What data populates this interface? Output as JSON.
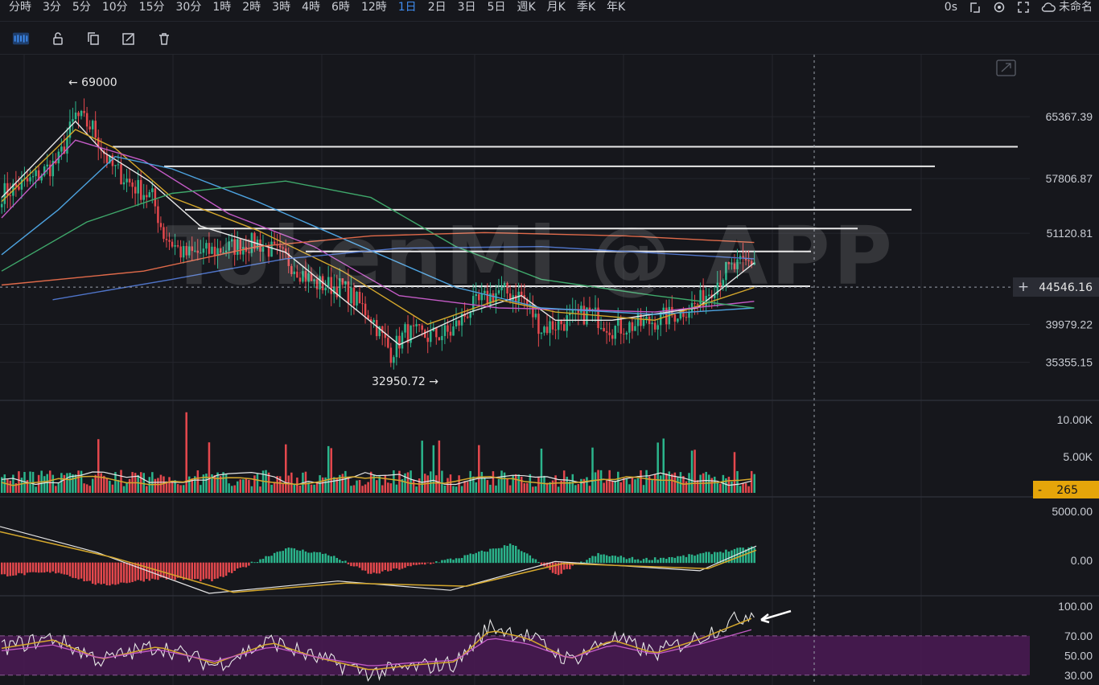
{
  "timeframes": [
    "分時",
    "3分",
    "5分",
    "10分",
    "15分",
    "30分",
    "1時",
    "2時",
    "3時",
    "4時",
    "6時",
    "12時",
    "1日",
    "2日",
    "3日",
    "5日",
    "週K",
    "月K",
    "季K",
    "年K"
  ],
  "active_timeframe": "1日",
  "topright": {
    "countdown": "0s",
    "layout_name": "未命名"
  },
  "toolbar_icons": [
    "pattern-icon",
    "lock-icon",
    "copy-icon",
    "edit-icon",
    "trash-icon"
  ],
  "watermark": "TokenMi @ APP",
  "colors": {
    "up": "#2bb58c",
    "down": "#e5484d",
    "bg": "#16171c",
    "grid": "#24262d",
    "accent": "#3f8cf0",
    "volume_tag": "#e5a50a"
  },
  "chart_data": {
    "type": "candlestick",
    "price_axis": {
      "ticks": [
        "65367.39",
        "57806.87",
        "51120.81",
        "39979.22",
        "35355.15"
      ],
      "range": [
        30700,
        70000
      ]
    },
    "current_price_label": "44546.16",
    "annotations": {
      "high": "69000",
      "low": "32950.72"
    },
    "key_points": [
      {
        "i": 0,
        "p": 56000
      },
      {
        "i": 10,
        "p": 57500
      },
      {
        "i": 20,
        "p": 60000
      },
      {
        "i": 26,
        "p": 65500
      },
      {
        "i": 32,
        "p": 64000
      },
      {
        "i": 38,
        "p": 59500
      },
      {
        "i": 46,
        "p": 57000
      },
      {
        "i": 53,
        "p": 55500
      },
      {
        "i": 57,
        "p": 51000
      },
      {
        "i": 64,
        "p": 48500
      },
      {
        "i": 72,
        "p": 48800
      },
      {
        "i": 82,
        "p": 49500
      },
      {
        "i": 90,
        "p": 50000
      },
      {
        "i": 100,
        "p": 48000
      },
      {
        "i": 110,
        "p": 45000
      },
      {
        "i": 120,
        "p": 44500
      },
      {
        "i": 130,
        "p": 41000
      },
      {
        "i": 137,
        "p": 36500
      },
      {
        "i": 142,
        "p": 39000
      },
      {
        "i": 150,
        "p": 38500
      },
      {
        "i": 158,
        "p": 39000
      },
      {
        "i": 165,
        "p": 42000
      },
      {
        "i": 175,
        "p": 44000
      },
      {
        "i": 183,
        "p": 43500
      },
      {
        "i": 190,
        "p": 39500
      },
      {
        "i": 200,
        "p": 40500
      },
      {
        "i": 207,
        "p": 41500
      },
      {
        "i": 215,
        "p": 39500
      },
      {
        "i": 225,
        "p": 40000
      },
      {
        "i": 235,
        "p": 41000
      },
      {
        "i": 245,
        "p": 42500
      },
      {
        "i": 255,
        "p": 46500
      },
      {
        "i": 265,
        "p": 47800
      }
    ],
    "moving_averages": [
      {
        "color": "#e6e6e6",
        "points": [
          [
            0,
            55500
          ],
          [
            26,
            64800
          ],
          [
            36,
            61000
          ],
          [
            52,
            57500
          ],
          [
            70,
            52000
          ],
          [
            100,
            48800
          ],
          [
            140,
            37500
          ],
          [
            165,
            41500
          ],
          [
            183,
            43500
          ],
          [
            195,
            40500
          ],
          [
            215,
            40500
          ],
          [
            245,
            42000
          ],
          [
            265,
            47500
          ]
        ]
      },
      {
        "color": "#d4a72c",
        "points": [
          [
            0,
            55000
          ],
          [
            26,
            63800
          ],
          [
            40,
            61500
          ],
          [
            60,
            55500
          ],
          [
            90,
            51500
          ],
          [
            120,
            46500
          ],
          [
            150,
            40000
          ],
          [
            175,
            43000
          ],
          [
            195,
            41500
          ],
          [
            230,
            40500
          ],
          [
            265,
            44500
          ]
        ]
      },
      {
        "color": "#c45bc7",
        "points": [
          [
            0,
            53000
          ],
          [
            26,
            62500
          ],
          [
            50,
            60000
          ],
          [
            80,
            53500
          ],
          [
            110,
            49500
          ],
          [
            140,
            43500
          ],
          [
            175,
            42000
          ],
          [
            200,
            41800
          ],
          [
            230,
            41500
          ],
          [
            265,
            42800
          ]
        ]
      },
      {
        "color": "#4da3e0",
        "points": [
          [
            0,
            48500
          ],
          [
            20,
            54000
          ],
          [
            40,
            60500
          ],
          [
            60,
            59000
          ],
          [
            90,
            55000
          ],
          [
            130,
            49000
          ],
          [
            160,
            44500
          ],
          [
            190,
            42000
          ],
          [
            230,
            41200
          ],
          [
            265,
            42000
          ]
        ]
      },
      {
        "color": "#3fa86b",
        "points": [
          [
            0,
            46500
          ],
          [
            30,
            52500
          ],
          [
            60,
            56000
          ],
          [
            100,
            57500
          ],
          [
            130,
            55500
          ],
          [
            160,
            49500
          ],
          [
            190,
            45500
          ],
          [
            230,
            43500
          ],
          [
            265,
            42000
          ]
        ]
      },
      {
        "color": "#e06a4a",
        "points": [
          [
            0,
            44800
          ],
          [
            50,
            46500
          ],
          [
            90,
            49500
          ],
          [
            130,
            50800
          ],
          [
            170,
            51200
          ],
          [
            220,
            50800
          ],
          [
            265,
            50000
          ]
        ]
      },
      {
        "color": "#4f74c9",
        "points": [
          [
            18,
            43000
          ],
          [
            60,
            45500
          ],
          [
            100,
            48000
          ],
          [
            140,
            49300
          ],
          [
            190,
            49500
          ],
          [
            240,
            48500
          ],
          [
            265,
            48000
          ]
        ]
      }
    ],
    "horizontal_levels": [
      {
        "price": 61700,
        "x1": 140,
        "x2": 1265
      },
      {
        "price": 59300,
        "x1": 204,
        "x2": 1162
      },
      {
        "price": 54000,
        "x1": 230,
        "x2": 1133
      },
      {
        "price": 51700,
        "x1": 246,
        "x2": 1066
      },
      {
        "price": 48900,
        "x1": 380,
        "x2": 1008
      },
      {
        "price": 44650,
        "x1": 440,
        "x2": 1007
      }
    ],
    "volume": {
      "ticks": [
        "10.00K",
        "5.00K"
      ],
      "max": 11000,
      "current": "265"
    },
    "macd": {
      "ticks": [
        "5000.00",
        "0.00"
      ],
      "range": [
        -3000,
        6000
      ]
    },
    "rsi": {
      "ticks": [
        "100.00",
        "70.00",
        "50.00",
        "30.00"
      ],
      "range": [
        20,
        105
      ],
      "band": [
        30,
        70
      ]
    }
  }
}
